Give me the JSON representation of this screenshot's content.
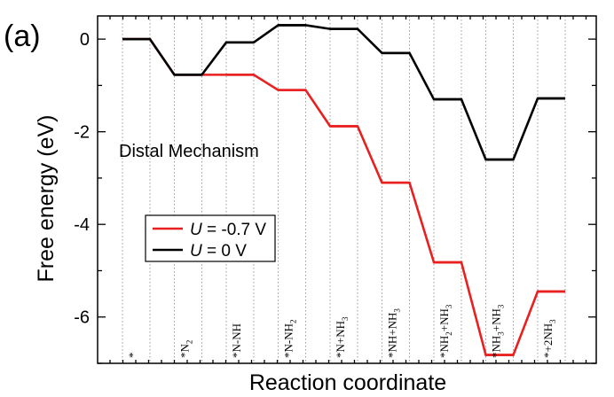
{
  "chart_data": {
    "type": "line",
    "panel_label": "(a)",
    "title": "Distal Mechanism",
    "xlabel": "Reaction coordinate",
    "ylabel": "Free energy (eV)",
    "ylim": [
      -7,
      0.5
    ],
    "yticks": [
      0,
      -2,
      -4,
      -6
    ],
    "grid": "vertical dotted",
    "categories": [
      {
        "id": "s0",
        "parts": [
          [
            "*",
            "n"
          ]
        ]
      },
      {
        "id": "s1",
        "parts": [
          [
            "*N",
            "n"
          ],
          [
            "2",
            "sub"
          ]
        ]
      },
      {
        "id": "s2",
        "parts": [
          [
            "*N-NH",
            "n"
          ]
        ]
      },
      {
        "id": "s3",
        "parts": [
          [
            "*N-NH",
            "n"
          ],
          [
            "2",
            "sub"
          ]
        ]
      },
      {
        "id": "s4",
        "parts": [
          [
            "*N+NH",
            "n"
          ],
          [
            "3",
            "sub"
          ]
        ]
      },
      {
        "id": "s5",
        "parts": [
          [
            "*NH+NH",
            "n"
          ],
          [
            "3",
            "sub"
          ]
        ]
      },
      {
        "id": "s6",
        "parts": [
          [
            "*NH",
            "n"
          ],
          [
            "2",
            "sub"
          ],
          [
            "+NH",
            "n"
          ],
          [
            "3",
            "sub"
          ]
        ]
      },
      {
        "id": "s7",
        "parts": [
          [
            "*NH",
            "n"
          ],
          [
            "3",
            "sub"
          ],
          [
            "+NH",
            "n"
          ],
          [
            "3",
            "sub"
          ]
        ]
      },
      {
        "id": "s8",
        "parts": [
          [
            "*+2NH",
            "n"
          ],
          [
            "3",
            "sub"
          ]
        ]
      }
    ],
    "series": [
      {
        "name": "U = -0.7 V",
        "legend_var": "U",
        "legend_rest": " = -0.7 V",
        "color": "#e8201f",
        "values": [
          0,
          -0.77,
          -0.77,
          -1.1,
          -1.88,
          -3.1,
          -4.82,
          -6.82,
          -5.45
        ]
      },
      {
        "name": "U = 0 V",
        "legend_var": "U",
        "legend_rest": " = 0 V",
        "color": "#000000",
        "values": [
          0,
          -0.77,
          -0.07,
          0.3,
          0.22,
          -0.3,
          -1.3,
          -2.6,
          -1.28
        ]
      }
    ],
    "legend_position": "lower-left"
  }
}
